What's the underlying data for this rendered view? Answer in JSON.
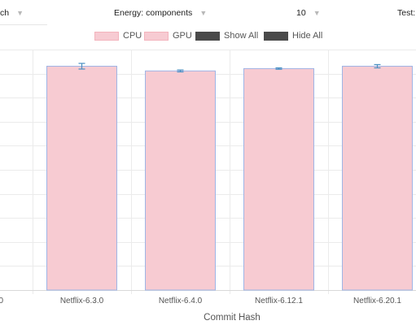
{
  "toolbar": {
    "branch_select": {
      "value": "ch",
      "chevron_icon": "chevron-down-icon"
    },
    "energy_select": {
      "value": "Energy: components",
      "chevron_icon": "chevron-down-icon"
    },
    "count_select": {
      "value": "10",
      "chevron_icon": "chevron-down-icon"
    },
    "test_label": "Test:"
  },
  "legend": [
    {
      "label": "CPU",
      "color": "#f7cbd2",
      "border": "#f3b4bd"
    },
    {
      "label": "GPU",
      "color": "#f7cbd2",
      "border": "#f3b4bd"
    },
    {
      "label": "Show All",
      "color": "#4a4a4a",
      "border": "#4a4a4a"
    },
    {
      "label": "Hide All",
      "color": "#4a4a4a",
      "border": "#4a4a4a"
    }
  ],
  "chart_data": {
    "type": "bar",
    "xlabel": "Commit Hash",
    "ylabel": "",
    "categories_partial_left": "0",
    "categories": [
      "Netflix-6.3.0",
      "Netflix-6.4.0",
      "Netflix-6.12.1",
      "Netflix-6.20.1"
    ],
    "series": [
      {
        "name": "CPU",
        "values": [
          0.95,
          0.93,
          0.94,
          0.95
        ],
        "error": [
          0.012,
          0.004,
          0.003,
          0.007
        ]
      },
      {
        "name": "GPU",
        "values": [
          0,
          0,
          0,
          0
        ]
      }
    ],
    "ylim": [
      0,
      1
    ],
    "grid": true,
    "bar_fill": "#f7cbd2",
    "bar_border": "#9fb5e6",
    "error_color": "#4a90c2",
    "grid_color": "#ebebeb"
  }
}
